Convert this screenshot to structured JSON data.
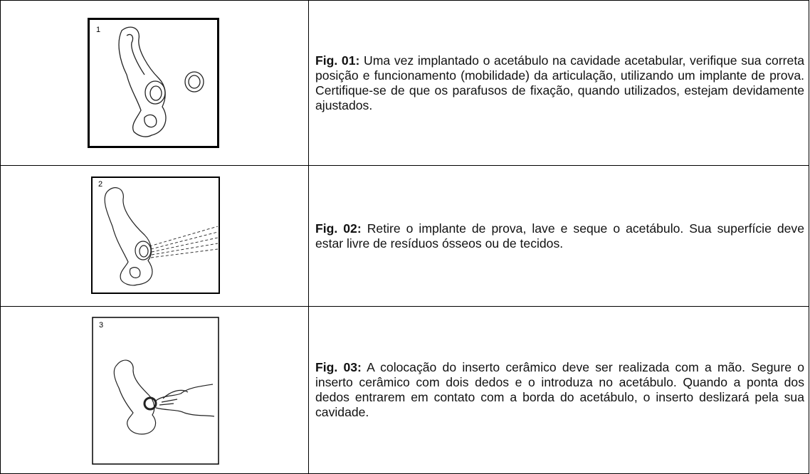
{
  "table": {
    "rows": [
      {
        "figure_number": "1",
        "label": "Fig. 01:",
        "text": "Uma vez implantado o acetábulo na cavidade acetabular, verifique sua correta posição e funcionamento (mobilidade) da articulação, utilizando um implante de prova. Certifique-se de que os parafusos de fixação, quando utilizados, estejam devidamente ajustados."
      },
      {
        "figure_number": "2",
        "label": "Fig. 02:",
        "text": "Retire o implante de prova, lave e seque o acetábulo. Sua superfície deve estar livre de resíduos ósseos ou de tecidos."
      },
      {
        "figure_number": "3",
        "label": "Fig. 03:",
        "text": "A colocação do inserto cerâmico deve ser realizada com a mão. Segure o inserto cerâmico com dois dedos e o introduza no acetábulo. Quando a ponta dos dedos entrarem em contato com a borda do acetábulo, o inserto deslizará pela sua cavidade."
      }
    ]
  }
}
